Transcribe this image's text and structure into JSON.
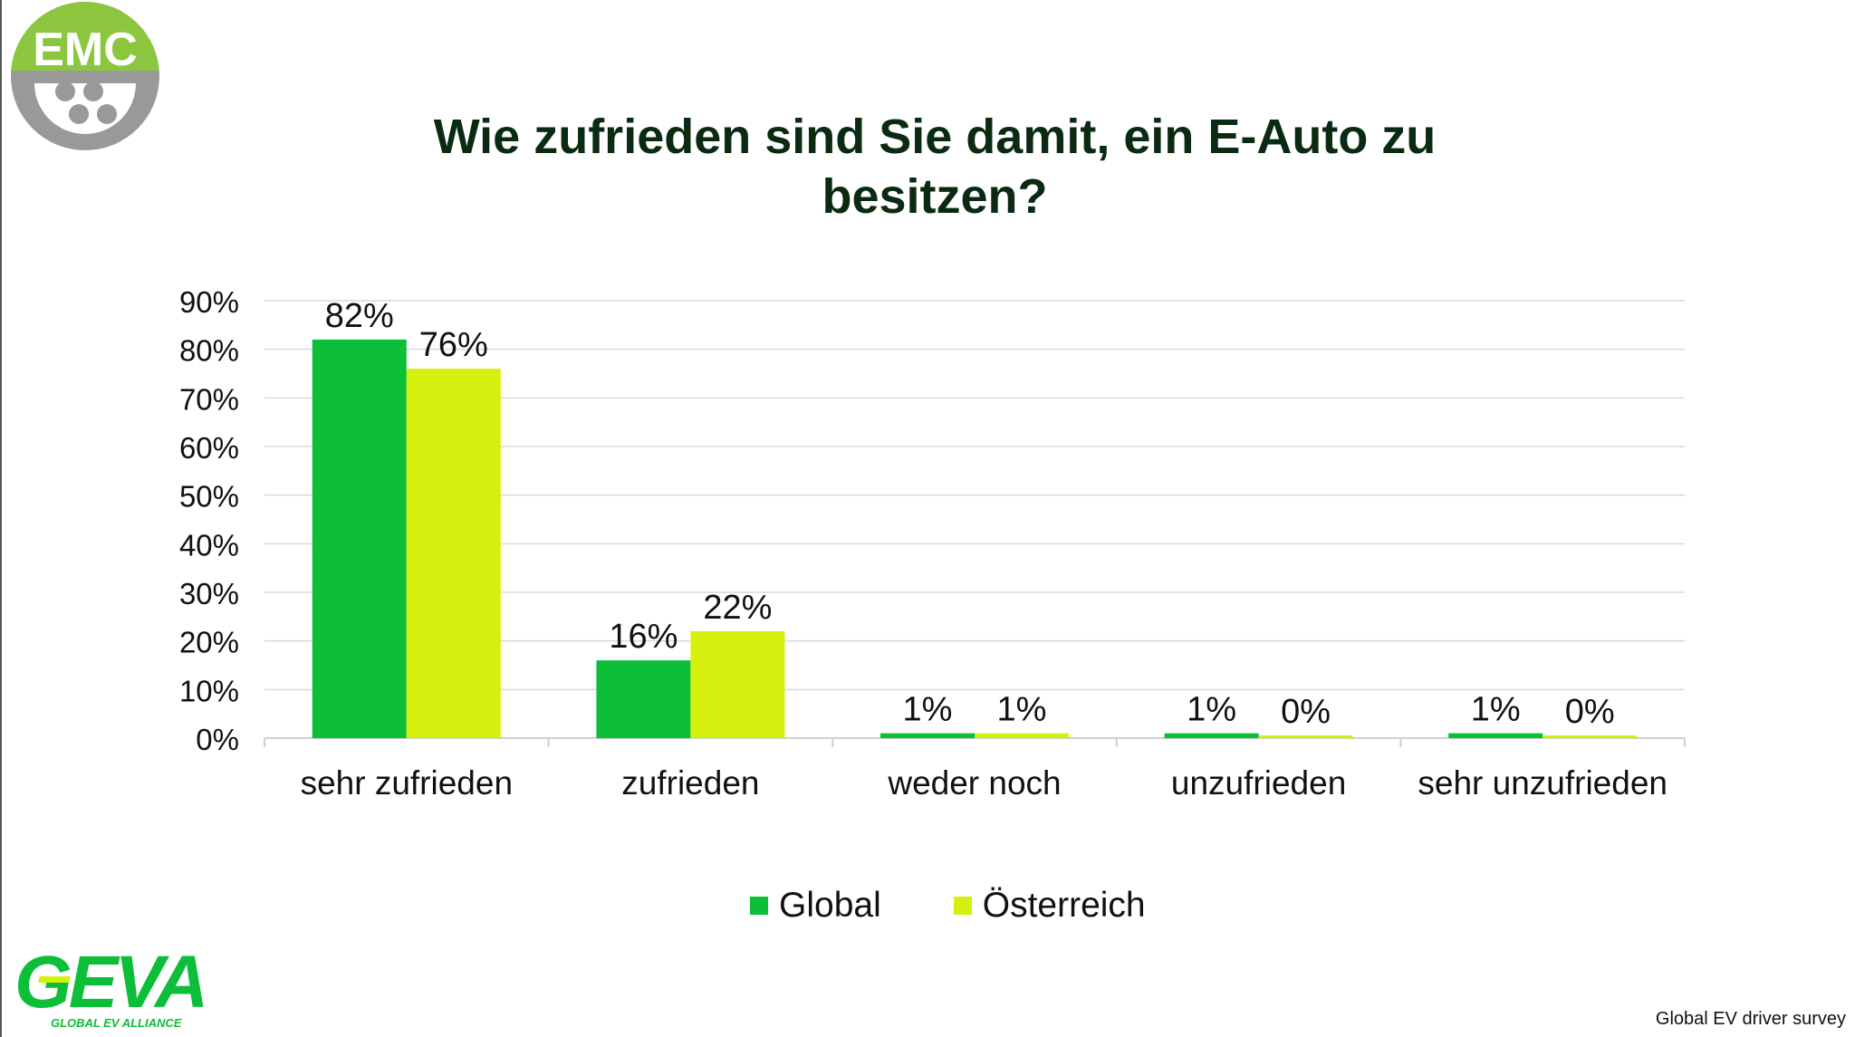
{
  "logos": {
    "emc_text": "EMC",
    "geva_text": "GEVA",
    "geva_subtext": "GLOBAL EV ALLIANCE"
  },
  "colors": {
    "global": "#0cbe38",
    "oesterreich": "#d5f00e",
    "title": "#0b2a12",
    "grid": "#d9d9d9",
    "emc_logo_green": "#8cc63f",
    "emc_logo_gray": "#999999"
  },
  "chart_data": {
    "type": "bar",
    "title": "Wie zufrieden sind Sie damit, ein E-Auto zu besitzen?",
    "title_lines": [
      "Wie zufrieden sind Sie damit, ein E-Auto zu",
      "besitzen?"
    ],
    "categories": [
      "sehr zufrieden",
      "zufrieden",
      "weder noch",
      "unzufrieden",
      "sehr unzufrieden"
    ],
    "series": [
      {
        "name": "Global",
        "values": [
          82,
          16,
          1,
          1,
          1
        ],
        "labels": [
          "82%",
          "16%",
          "1%",
          "1%",
          "1%"
        ]
      },
      {
        "name": "Österreich",
        "values": [
          76,
          22,
          1,
          0,
          0
        ],
        "labels": [
          "76%",
          "22%",
          "1%",
          "0%",
          "0%"
        ]
      }
    ],
    "ylim": [
      0,
      90
    ],
    "y_ticks": [
      0,
      10,
      20,
      30,
      40,
      50,
      60,
      70,
      80,
      90
    ],
    "y_tick_labels": [
      "0%",
      "10%",
      "20%",
      "30%",
      "40%",
      "50%",
      "60%",
      "70%",
      "80%",
      "90%"
    ],
    "xlabel": "",
    "ylabel": "",
    "grid": true,
    "legend": "bottom-center"
  },
  "source_note": "Global EV driver survey"
}
